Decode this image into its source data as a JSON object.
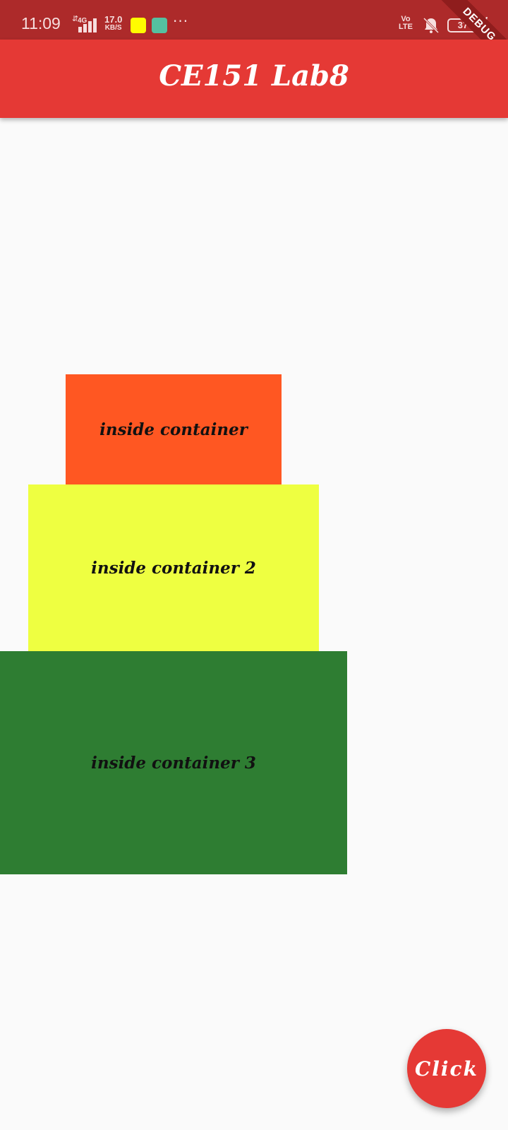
{
  "status_bar": {
    "time": "11:09",
    "network_type": "4G",
    "speed_value": "17.0",
    "speed_unit": "KB/S",
    "volte_top": "Vo",
    "volte_bottom": "LTE",
    "battery": "37"
  },
  "debug_banner": "DEBUG",
  "app_bar": {
    "title": "CE151 Lab8"
  },
  "containers": [
    {
      "label": "inside container",
      "color": "#ff5722"
    },
    {
      "label": "inside container 2",
      "color": "#eeff41"
    },
    {
      "label": "inside container 3",
      "color": "#2e7d32"
    }
  ],
  "fab": {
    "label": "Click"
  },
  "colors": {
    "app_bar": "#e53935",
    "status_bar": "#ad2a2a",
    "background": "#fafafa"
  }
}
